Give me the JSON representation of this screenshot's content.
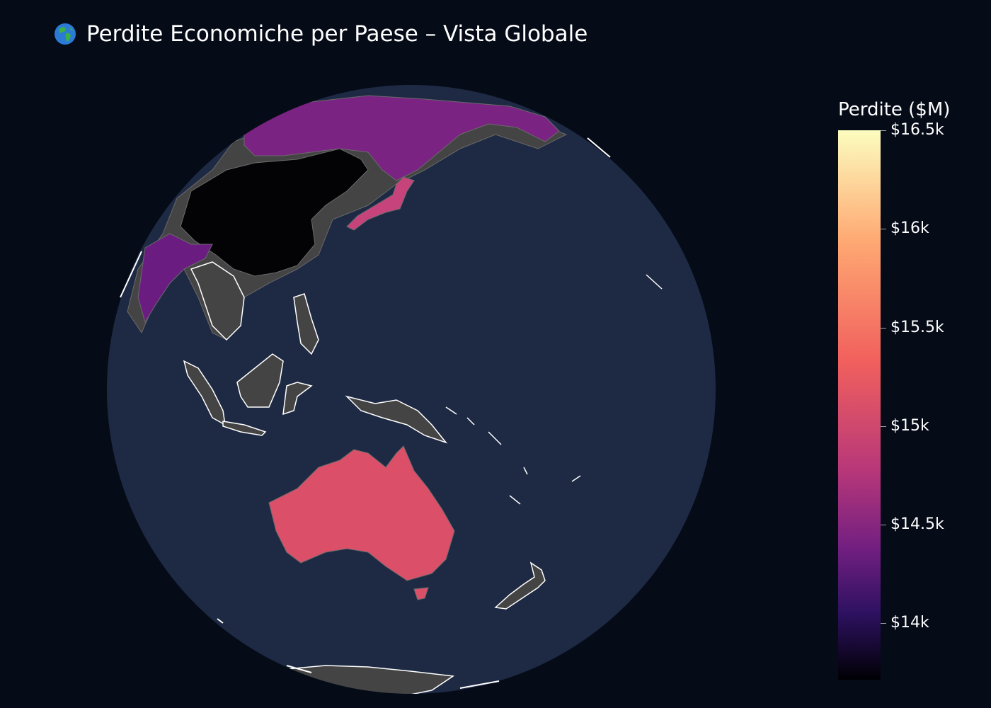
{
  "title": {
    "icon": "globe-asia-australia-icon",
    "text": "Perdite Economiche per Paese – Vista Globale"
  },
  "colorbar": {
    "title": "Perdite ($M)",
    "colorscale": "magma",
    "range": [
      13700,
      16500
    ],
    "ticks": [
      {
        "label": "$16.5k",
        "value": 16500
      },
      {
        "label": "$16k",
        "value": 16000
      },
      {
        "label": "$15.5k",
        "value": 15500
      },
      {
        "label": "$15k",
        "value": 15000
      },
      {
        "label": "$14.5k",
        "value": 14500
      },
      {
        "label": "$14k",
        "value": 14000
      }
    ]
  },
  "map": {
    "projection": "orthographic",
    "ocean_color": "#1e2a44",
    "land_color": "#444444",
    "coastline_color": "#ffffff",
    "background_color": "#060b18",
    "countries": [
      {
        "name": "China",
        "value": 13720,
        "color": "#030305"
      },
      {
        "name": "Russia",
        "value": 14850,
        "color": "#7b2382"
      },
      {
        "name": "India",
        "value": 14700,
        "color": "#6b1c81"
      },
      {
        "name": "Japan",
        "value": 15250,
        "color": "#c7437b"
      },
      {
        "name": "Australia",
        "value": 15420,
        "color": "#dc4f69"
      }
    ]
  }
}
